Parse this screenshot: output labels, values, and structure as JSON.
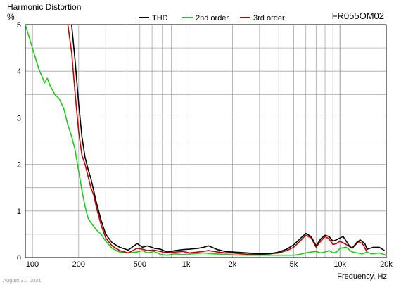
{
  "chart_data": {
    "type": "line",
    "title": "Harmonic Distortion",
    "model": "FR055OM02",
    "ylabel": "%",
    "xlabel": "Frequency, Hz",
    "footer_date": "August 31, 2021",
    "xscale": "log",
    "xlim": [
      90,
      20000
    ],
    "ylim": [
      0,
      5
    ],
    "grid": true,
    "legend_position": "top-center",
    "xticks": [
      {
        "v": 100,
        "label": "100"
      },
      {
        "v": 200,
        "label": "200"
      },
      {
        "v": 500,
        "label": "500"
      },
      {
        "v": 1000,
        "label": "1k"
      },
      {
        "v": 2000,
        "label": "2k"
      },
      {
        "v": 5000,
        "label": "5k"
      },
      {
        "v": 10000,
        "label": "10k"
      },
      {
        "v": 20000,
        "label": "20k"
      }
    ],
    "yticks": [
      {
        "v": 0,
        "label": "0"
      },
      {
        "v": 1,
        "label": "1"
      },
      {
        "v": 2,
        "label": "2"
      },
      {
        "v": 3,
        "label": "3"
      },
      {
        "v": 4,
        "label": "4"
      },
      {
        "v": 5,
        "label": "5"
      }
    ],
    "series": [
      {
        "name": "THD",
        "color": "#000000",
        "x": [
          180,
          190,
          200,
          210,
          220,
          230,
          240,
          250,
          260,
          280,
          300,
          330,
          370,
          420,
          480,
          520,
          560,
          620,
          680,
          750,
          850,
          950,
          1050,
          1200,
          1300,
          1400,
          1600,
          1800,
          2000,
          2500,
          3000,
          3500,
          4000,
          4500,
          5000,
          5500,
          6000,
          6500,
          7000,
          7500,
          8000,
          8500,
          9000,
          9500,
          10000,
          10500,
          11000,
          11500,
          12000,
          13000,
          13500,
          14500,
          15000,
          16500,
          18000,
          19500
        ],
        "y": [
          5.0,
          4.2,
          3.3,
          2.6,
          2.15,
          1.9,
          1.7,
          1.45,
          1.2,
          0.8,
          0.5,
          0.32,
          0.22,
          0.16,
          0.3,
          0.22,
          0.25,
          0.2,
          0.18,
          0.12,
          0.15,
          0.17,
          0.18,
          0.2,
          0.22,
          0.25,
          0.17,
          0.13,
          0.12,
          0.1,
          0.08,
          0.08,
          0.12,
          0.18,
          0.27,
          0.4,
          0.52,
          0.45,
          0.25,
          0.4,
          0.48,
          0.45,
          0.35,
          0.38,
          0.42,
          0.45,
          0.35,
          0.25,
          0.2,
          0.32,
          0.38,
          0.3,
          0.18,
          0.22,
          0.22,
          0.15
        ]
      },
      {
        "name": "2nd order",
        "color": "#1ecb1e",
        "x": [
          90,
          100,
          110,
          115,
          120,
          125,
          130,
          135,
          140,
          145,
          150,
          160,
          170,
          180,
          190,
          200,
          210,
          220,
          230,
          240,
          260,
          280,
          300,
          330,
          370,
          420,
          480,
          520,
          560,
          620,
          680,
          750,
          850,
          950,
          1100,
          1300,
          1500,
          1800,
          2000,
          2500,
          3000,
          3500,
          4000,
          4500,
          5000,
          5500,
          6000,
          6500,
          7000,
          7500,
          8000,
          8500,
          9000,
          9500,
          10000,
          11000,
          12000,
          13000,
          14000,
          15000,
          16000,
          18000,
          20000
        ],
        "y": [
          5.0,
          4.5,
          4.05,
          3.9,
          3.75,
          3.85,
          3.7,
          3.6,
          3.5,
          3.45,
          3.4,
          3.2,
          2.85,
          2.6,
          2.3,
          1.85,
          1.45,
          1.1,
          0.85,
          0.75,
          0.6,
          0.5,
          0.35,
          0.2,
          0.12,
          0.1,
          0.12,
          0.15,
          0.1,
          0.13,
          0.07,
          0.05,
          0.08,
          0.06,
          0.08,
          0.1,
          0.08,
          0.07,
          0.06,
          0.05,
          0.05,
          0.05,
          0.05,
          0.05,
          0.05,
          0.07,
          0.1,
          0.12,
          0.13,
          0.1,
          0.12,
          0.15,
          0.1,
          0.12,
          0.2,
          0.22,
          0.12,
          0.1,
          0.08,
          0.12,
          0.08,
          0.1,
          0.05
        ]
      },
      {
        "name": "3rd order",
        "color": "#c00000",
        "x": [
          170,
          180,
          190,
          200,
          210,
          220,
          230,
          240,
          250,
          260,
          280,
          300,
          330,
          370,
          420,
          480,
          520,
          560,
          620,
          680,
          750,
          850,
          950,
          1050,
          1200,
          1400,
          1600,
          1800,
          2000,
          2500,
          3000,
          3500,
          4000,
          4500,
          5000,
          5500,
          6000,
          6500,
          7000,
          7500,
          8000,
          8500,
          9000,
          9500,
          10000,
          11000,
          12000,
          13000,
          14000,
          15000
        ],
        "y": [
          5.0,
          4.4,
          3.5,
          2.7,
          2.2,
          2.0,
          1.75,
          1.5,
          1.35,
          1.1,
          0.7,
          0.42,
          0.25,
          0.15,
          0.1,
          0.2,
          0.18,
          0.15,
          0.16,
          0.13,
          0.1,
          0.12,
          0.13,
          0.1,
          0.12,
          0.15,
          0.12,
          0.1,
          0.1,
          0.07,
          0.07,
          0.08,
          0.1,
          0.15,
          0.22,
          0.35,
          0.48,
          0.42,
          0.22,
          0.35,
          0.45,
          0.4,
          0.28,
          0.3,
          0.35,
          0.28,
          0.2,
          0.35,
          0.3,
          0.12
        ]
      }
    ]
  }
}
